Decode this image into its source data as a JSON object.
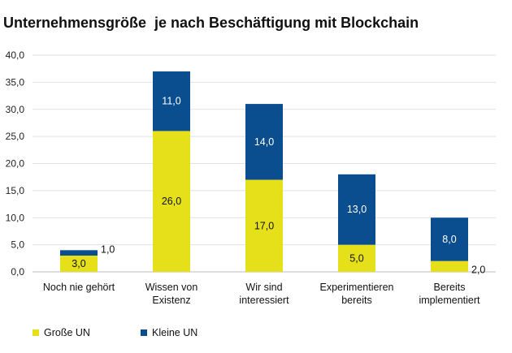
{
  "chart_data": {
    "type": "stacked-bar",
    "title": "Unternehmensgröße  je nach Beschäftigung mit Blockchain",
    "categories": [
      [
        "Noch nie gehört"
      ],
      [
        "Wissen von",
        "Existenz"
      ],
      [
        "Wir sind",
        "interessiert"
      ],
      [
        "Experimentieren",
        "bereits"
      ],
      [
        "Bereits",
        "implementiert"
      ]
    ],
    "series": [
      {
        "name": "Große UN",
        "color": "#e5e01a",
        "values": [
          3.0,
          26.0,
          17.0,
          5.0,
          2.0
        ],
        "labels": [
          "3,0",
          "26,0",
          "17,0",
          "5,0",
          "2,0"
        ]
      },
      {
        "name": "Kleine UN",
        "color": "#0b4e8f",
        "values": [
          1.0,
          11.0,
          14.0,
          13.0,
          8.0
        ],
        "labels": [
          "1,0",
          "11,0",
          "14,0",
          "13,0",
          "8,0"
        ]
      }
    ],
    "ylim": [
      0,
      40
    ],
    "yticks": [
      "0,0",
      "5,0",
      "10,0",
      "15,0",
      "20,0",
      "25,0",
      "30,0",
      "35,0",
      "40,0"
    ],
    "grid": true,
    "legend": "bottom-left"
  }
}
